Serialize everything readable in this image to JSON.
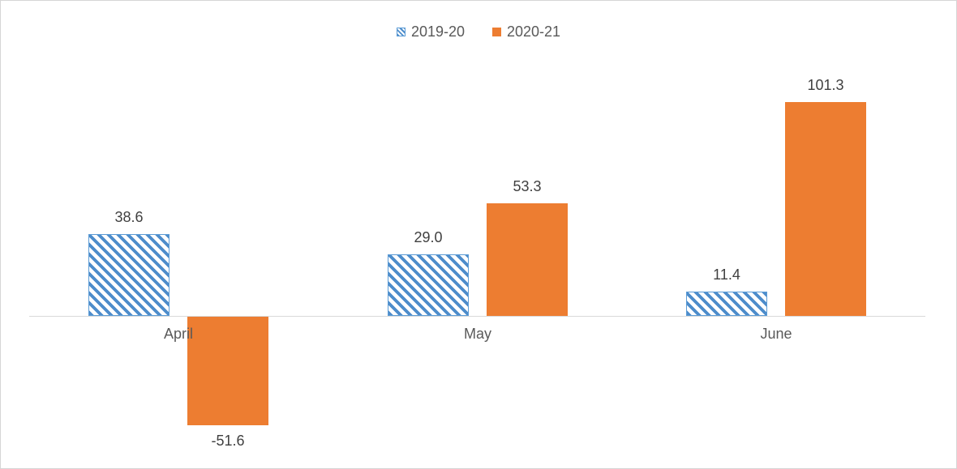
{
  "chart_data": {
    "type": "bar",
    "categories": [
      "April",
      "May",
      "June"
    ],
    "series": [
      {
        "name": "2019-20",
        "values": [
          38.6,
          29.0,
          11.4
        ],
        "labels": [
          "38.6",
          "29.0",
          "11.4"
        ],
        "fill_style": "hatched-diagonal",
        "color": "#5b9bd5"
      },
      {
        "name": "2020-21",
        "values": [
          -51.6,
          53.3,
          101.3
        ],
        "labels": [
          "-51.6",
          "53.3",
          "101.3"
        ],
        "fill_style": "solid",
        "color": "#ed7d31"
      }
    ],
    "title": "",
    "xlabel": "",
    "ylabel": "",
    "baseline": 0,
    "ylim": [
      -60,
      110
    ],
    "layout": {
      "legend_position": "top-center",
      "value_axis_visible": false,
      "gridlines": false,
      "data_labels_visible": true
    },
    "colors": {
      "axis_line": "#d9d9d9",
      "data_label_text": "#404040",
      "category_label_text": "#595959",
      "legend_text": "#595959"
    }
  }
}
